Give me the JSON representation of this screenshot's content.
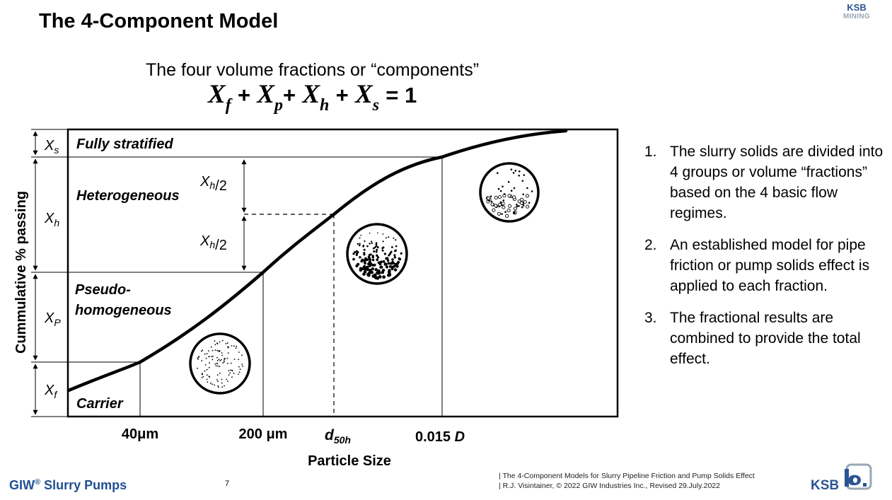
{
  "slide": {
    "title": "The 4-Component Model",
    "brand_top_line1": "KSB",
    "brand_top_line2": "MINING"
  },
  "diagram": {
    "subtitle": "The four volume fractions or “components”",
    "formula": {
      "terms": [
        {
          "var": "X",
          "sub": "f"
        },
        {
          "var": "X",
          "sub": "p"
        },
        {
          "var": "X",
          "sub": "h"
        },
        {
          "var": "X",
          "sub": "s"
        }
      ],
      "plus": "+",
      "equals": "= 1"
    },
    "ylabel": "Cummulative % passing",
    "xlabel": "Particle Size",
    "left_scale": {
      "xs": "X",
      "xs_sub": "s",
      "xh": "X",
      "xh_sub": "h",
      "xp": "X",
      "xp_sub": "P",
      "xf": "X",
      "xf_sub": "f"
    },
    "regions": {
      "fully_stratified": "Fully stratified",
      "heterogeneous": "Heterogeneous",
      "pseudo_line1": "Pseudo-",
      "pseudo_line2": "homogeneous",
      "carrier": "Carrier"
    },
    "half_marker": {
      "var": "X",
      "sub": "h",
      "den": "/2"
    },
    "x_ticks": {
      "t40": "40μm",
      "t200": "200 μm",
      "d50_main": "d",
      "d50_sub": "50h",
      "t015": "0.015 ",
      "t015_d": "D"
    }
  },
  "bullets": [
    {
      "num": "1.",
      "text": "The slurry solids are divided into 4 groups or volume “fractions” based on the 4 basic flow regimes."
    },
    {
      "num": "2.",
      "text": "An established model for pipe friction or pump solids effect is applied to each fraction."
    },
    {
      "num": "3.",
      "text": "The fractional results are combined to provide the total effect."
    }
  ],
  "footer": {
    "brand": "GIW",
    "brand_reg": "®",
    "brand_rest": " Slurry Pumps",
    "page": "7",
    "note_line1": "| The 4-Component Models for Slurry Pipeline Friction and Pump Solids Effect",
    "note_line2": "| R.J. Visintainer, © 2022 GIW Industries Inc., Revised 29.July.2022",
    "ksb": "KSB"
  },
  "colors": {
    "brand_blue": "#1f4f94",
    "ksb_blue": "#2a5591",
    "ksb_grey": "#9aa7b4"
  }
}
